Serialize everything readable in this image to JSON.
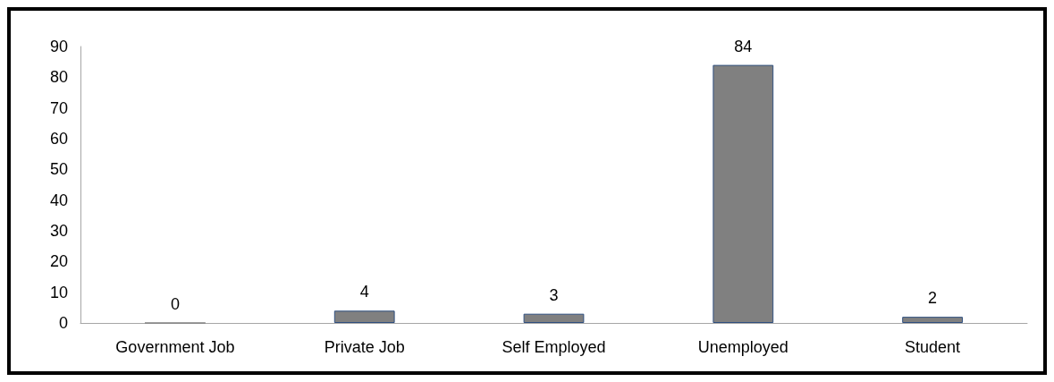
{
  "chart_data": {
    "type": "bar",
    "categories": [
      "Government Job",
      "Private Job",
      "Self Employed",
      "Unemployed",
      "Student"
    ],
    "values": [
      0,
      4,
      3,
      84,
      2
    ],
    "color": "#808080",
    "ylim": [
      0,
      90
    ],
    "yticks": [
      0,
      10,
      20,
      30,
      40,
      50,
      60,
      70,
      80,
      90
    ],
    "grid": false,
    "data_labels": true
  }
}
